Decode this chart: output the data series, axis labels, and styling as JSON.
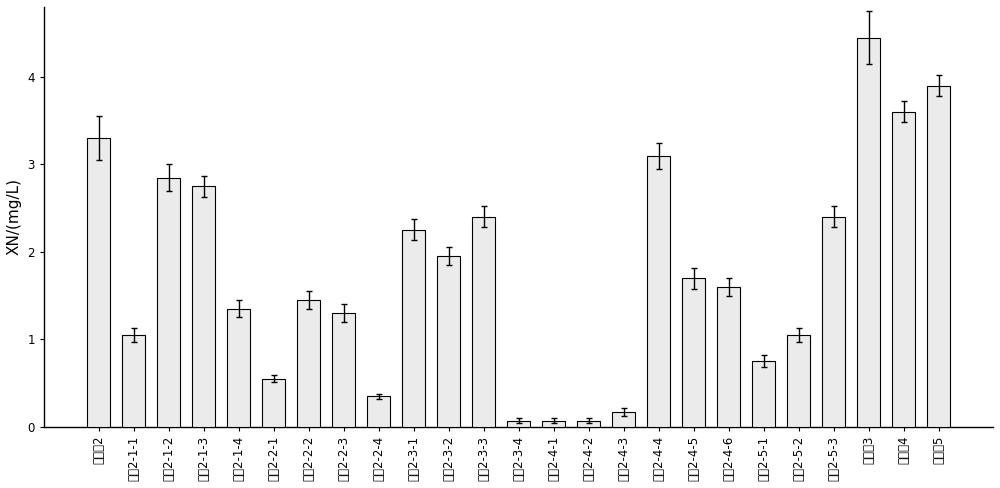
{
  "categories": [
    "实施外2",
    "对比2-1-1",
    "对比2-1-2",
    "对比2-1-3",
    "对比2-1-4",
    "对比2-2-1",
    "对比2-2-2",
    "对比2-2-3",
    "对比2-2-4",
    "对比2-3-1",
    "对比2-3-2",
    "对比2-3-3",
    "对比2-3-4",
    "对比2-4-1",
    "对比2-4-2",
    "对比2-4-3",
    "对比2-4-4",
    "对比2-4-5",
    "对比2-4-6",
    "对比2-5-1",
    "对比2-5-2",
    "对比2-5-3",
    "实施外3",
    "实施外4",
    "实施外5"
  ],
  "values": [
    3.3,
    1.05,
    2.85,
    2.75,
    1.35,
    0.55,
    1.45,
    1.3,
    0.35,
    2.25,
    1.95,
    2.4,
    0.07,
    0.07,
    0.07,
    0.17,
    3.1,
    1.7,
    1.6,
    0.75,
    1.05,
    2.4,
    4.45,
    3.6,
    3.9
  ],
  "errors": [
    0.25,
    0.08,
    0.15,
    0.12,
    0.1,
    0.04,
    0.1,
    0.1,
    0.03,
    0.12,
    0.1,
    0.12,
    0.03,
    0.03,
    0.03,
    0.05,
    0.15,
    0.12,
    0.1,
    0.07,
    0.08,
    0.12,
    0.3,
    0.12,
    0.12
  ],
  "bar_color": "#ebebeb",
  "bar_edgecolor": "#000000",
  "ylabel": "XN/(mg/L)",
  "ylim": [
    0,
    4.8
  ],
  "yticks": [
    0,
    1,
    2,
    3,
    4
  ],
  "background_color": "#ffffff",
  "bar_width": 0.65,
  "capsize": 2.5,
  "elinewidth": 1.0,
  "capthick": 1.0,
  "tick_fontsize": 8.5,
  "ylabel_fontsize": 11,
  "bar_linewidth": 0.8
}
